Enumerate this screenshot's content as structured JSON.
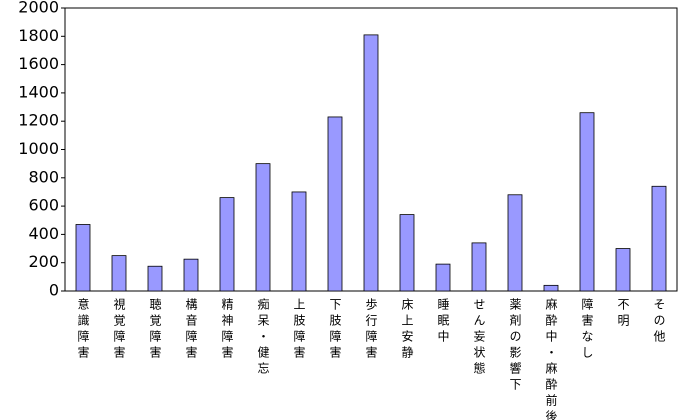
{
  "chart_data": {
    "type": "bar",
    "categories": [
      "意識障害",
      "視覚障害",
      "聴覚障害",
      "構音障害",
      "精神障害",
      "痴呆・健忘",
      "上肢障害",
      "下肢障害",
      "歩行障害",
      "床上安静",
      "睡眠中",
      "せん妄状態",
      "薬剤の影響下",
      "麻酔中・麻酔前後",
      "障害なし",
      "不明",
      "その他"
    ],
    "values": [
      470,
      250,
      175,
      225,
      660,
      900,
      700,
      1230,
      1810,
      540,
      190,
      340,
      680,
      40,
      1260,
      300,
      740
    ],
    "color": "#9999ff",
    "ylim": [
      0,
      2000
    ],
    "yticks": [
      0,
      200,
      400,
      600,
      800,
      1000,
      1200,
      1400,
      1600,
      1800,
      2000
    ],
    "grid": false
  }
}
